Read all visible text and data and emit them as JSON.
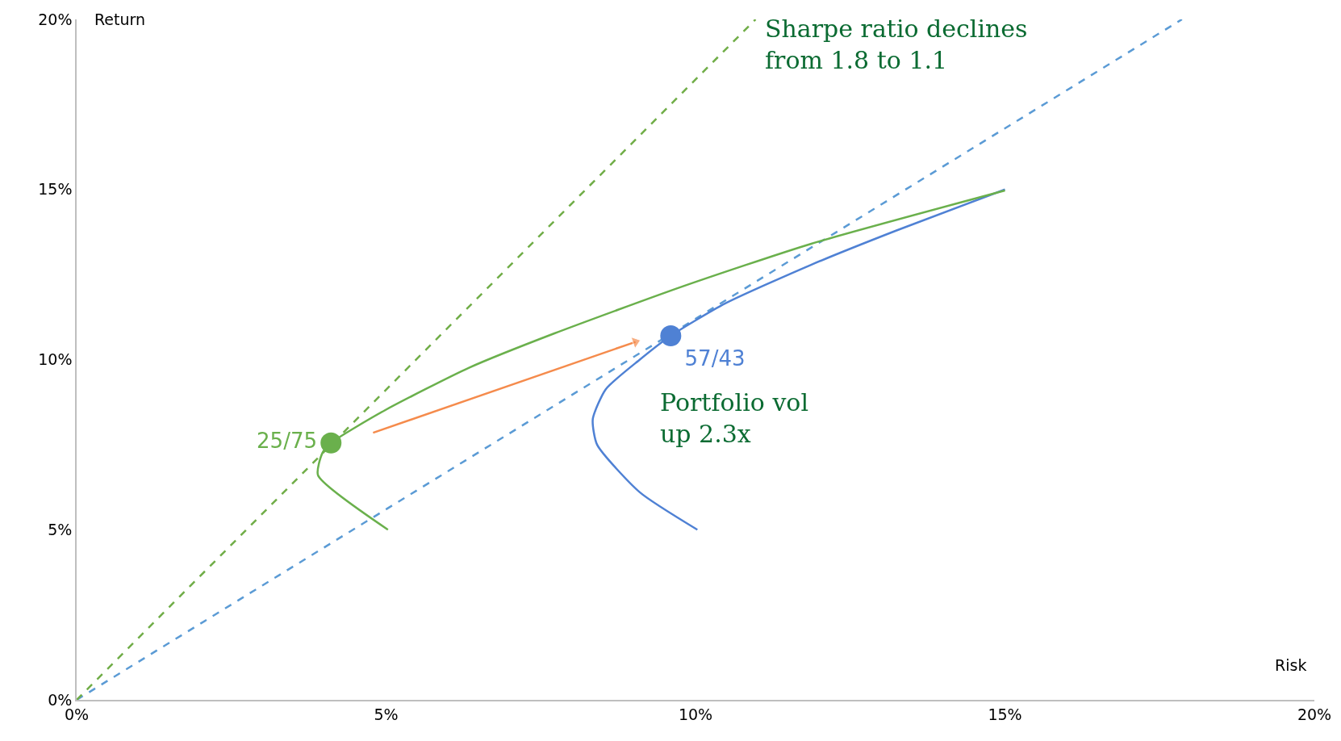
{
  "chart_data": {
    "type": "line",
    "xlabel": "Risk",
    "ylabel": "Return",
    "xlim": [
      0,
      20
    ],
    "ylim": [
      0,
      20
    ],
    "xticks": [
      {
        "value": 0,
        "label": "0%"
      },
      {
        "value": 5,
        "label": "5%"
      },
      {
        "value": 10,
        "label": "10%"
      },
      {
        "value": 15,
        "label": "15%"
      },
      {
        "value": 20,
        "label": "20%"
      }
    ],
    "yticks": [
      {
        "value": 0,
        "label": "0%"
      },
      {
        "value": 5,
        "label": "5%"
      },
      {
        "value": 10,
        "label": "10%"
      },
      {
        "value": 15,
        "label": "15%"
      },
      {
        "value": 20,
        "label": "20%"
      }
    ],
    "series": [
      {
        "color": "#5b9bd5",
        "line_style": "dashed",
        "x": [
          0,
          17.86
        ],
        "values": [
          0,
          20
        ]
      },
      {
        "color": "#70ad47",
        "line_style": "dashed",
        "x": [
          0,
          10.97
        ],
        "values": [
          0,
          20
        ]
      },
      {
        "color": "#4f81d4",
        "line_style": "solid",
        "x": [
          10.03,
          9.1,
          8.41,
          8.34,
          8.55,
          9.1,
          9.6,
          10.48,
          11.86,
          13.24,
          15.0
        ],
        "values": [
          5.0,
          6.1,
          7.5,
          8.25,
          9.13,
          10.0,
          10.7,
          11.65,
          12.78,
          13.79,
          15.0
        ]
      },
      {
        "color": "#6ab04c",
        "line_style": "solid",
        "x": [
          5.03,
          3.9,
          3.97,
          4.11,
          4.97,
          6.34,
          7.72,
          9.79,
          11.86,
          15.0
        ],
        "values": [
          5.0,
          6.6,
          7.25,
          7.55,
          8.5,
          9.76,
          10.77,
          12.15,
          13.4,
          14.97
        ]
      },
      {
        "color": "#f58b4c",
        "line_style": "solid",
        "marker": "triangle",
        "x": [
          4.79,
          9.03
        ],
        "values": [
          7.85,
          10.52
        ]
      },
      {
        "type": "scatter",
        "name": "25/75",
        "color": "#6ab04c",
        "marker": "circle",
        "x": [
          4.11
        ],
        "values": [
          7.55
        ]
      },
      {
        "type": "scatter",
        "name": "57/43",
        "color": "#4f81d4",
        "marker": "circle",
        "x": [
          9.6
        ],
        "values": [
          10.7
        ]
      }
    ],
    "annotations": [
      "Sharpe ratio declines\nfrom 1.8 to 1.1",
      "Portfolio vol\nup 2.3x"
    ]
  }
}
